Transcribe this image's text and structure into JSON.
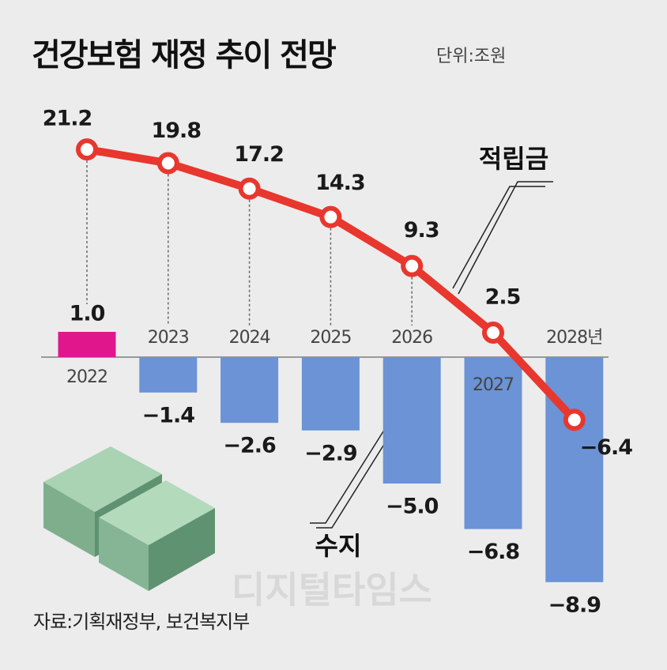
{
  "chart_data": {
    "type": "combo",
    "title": "건강보험 재정 추이 전망",
    "unit": "단위:조원",
    "source": "자료:기획재정부, 보건복지부",
    "watermark": "디지털타임스",
    "categories": [
      "2022",
      "2023",
      "2024",
      "2025",
      "2026",
      "2027",
      "2028년"
    ],
    "series": [
      {
        "name": "수지",
        "type": "bar",
        "color": "#6b93d6",
        "colors": [
          "#e0168c",
          "#6b93d6",
          "#6b93d6",
          "#6b93d6",
          "#6b93d6",
          "#6b93d6",
          "#6b93d6"
        ],
        "values": [
          1.0,
          -1.4,
          -2.6,
          -2.9,
          -5.0,
          -6.8,
          -8.9
        ],
        "value_labels": [
          "1.0",
          "−1.4",
          "−2.6",
          "−2.9",
          "−5.0",
          "−6.8",
          "−8.9"
        ]
      },
      {
        "name": "적립금",
        "type": "line",
        "color": "#e8372e",
        "values": [
          21.2,
          19.8,
          17.2,
          14.3,
          9.3,
          2.5,
          -6.4
        ],
        "value_labels": [
          "21.2",
          "19.8",
          "17.2",
          "14.3",
          "9.3",
          "2.5",
          "−6.4"
        ]
      }
    ]
  }
}
